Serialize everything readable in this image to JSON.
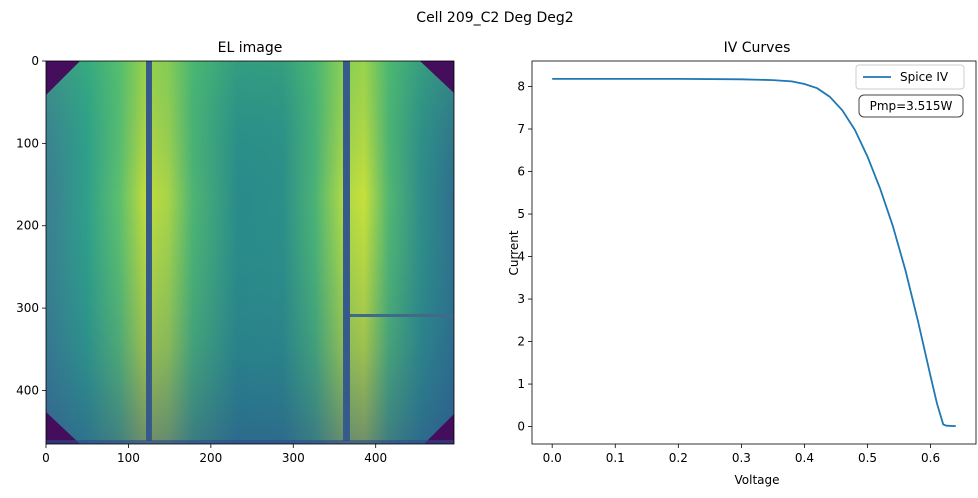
{
  "figure": {
    "title": "Cell 209_C2 Deg Deg2"
  },
  "chart_data": [
    {
      "type": "heatmap",
      "title": "EL image",
      "xlabel": "",
      "ylabel": "",
      "xlim": [
        0,
        495
      ],
      "ylim": [
        465,
        0
      ],
      "y_inverted": true,
      "xticks": [
        0,
        100,
        200,
        300,
        400
      ],
      "yticks": [
        0,
        100,
        200,
        300,
        400
      ],
      "colormap": "viridis",
      "busbars_x": [
        125,
        365
      ],
      "crack": {
        "x_start": 365,
        "x_end": 495,
        "y": 310
      },
      "corner_cutouts": true
    },
    {
      "type": "line",
      "title": "IV Curves",
      "xlabel": "Voltage",
      "ylabel": "Current",
      "xlim": [
        -0.032,
        0.672
      ],
      "ylim": [
        -0.41,
        8.6
      ],
      "xticks": [
        0.0,
        0.1,
        0.2,
        0.3,
        0.4,
        0.5,
        0.6
      ],
      "xtick_labels": [
        "0.0",
        "0.1",
        "0.2",
        "0.3",
        "0.4",
        "0.5",
        "0.6"
      ],
      "yticks": [
        0,
        1,
        2,
        3,
        4,
        5,
        6,
        7,
        8
      ],
      "yticklabels": [
        "0",
        "1",
        "2",
        "3",
        "4",
        "5",
        "6",
        "7",
        "8"
      ],
      "series": [
        {
          "name": "Spice IV",
          "color": "#1f77b4",
          "x": [
            0.0,
            0.1,
            0.2,
            0.3,
            0.35,
            0.38,
            0.4,
            0.42,
            0.44,
            0.46,
            0.48,
            0.5,
            0.52,
            0.54,
            0.56,
            0.58,
            0.6,
            0.61,
            0.62,
            0.625,
            0.64
          ],
          "y": [
            8.18,
            8.18,
            8.18,
            8.17,
            8.15,
            8.12,
            8.06,
            7.96,
            7.76,
            7.44,
            6.98,
            6.35,
            5.6,
            4.72,
            3.68,
            2.48,
            1.18,
            0.55,
            0.05,
            0.02,
            0.01
          ]
        }
      ],
      "legend": {
        "position": "top-right",
        "entries": [
          "Spice IV"
        ]
      },
      "annotation": "Pmp=3.515W",
      "grid": false
    }
  ]
}
